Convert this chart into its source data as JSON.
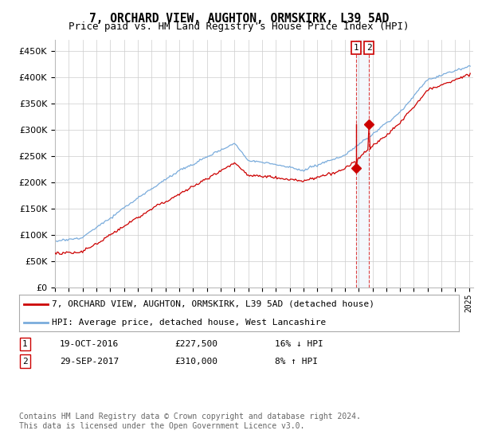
{
  "title": "7, ORCHARD VIEW, AUGHTON, ORMSKIRK, L39 5AD",
  "subtitle": "Price paid vs. HM Land Registry's House Price Index (HPI)",
  "x_start_year": 1995,
  "x_end_year": 2025,
  "y_min": 0,
  "y_max": 470000,
  "y_ticks": [
    0,
    50000,
    100000,
    150000,
    200000,
    250000,
    300000,
    350000,
    400000,
    450000
  ],
  "sale1_date": "19-OCT-2016",
  "sale1_price": 227500,
  "sale1_pct": "16%",
  "sale1_dir": "↓",
  "sale2_date": "29-SEP-2017",
  "sale2_price": 310000,
  "sale2_dir": "↑",
  "sale2_pct": "8%",
  "sale1_x": 2016.8,
  "sale2_x": 2017.75,
  "line1_label": "7, ORCHARD VIEW, AUGHTON, ORMSKIRK, L39 5AD (detached house)",
  "line2_label": "HPI: Average price, detached house, West Lancashire",
  "line1_color": "#cc0000",
  "line2_color": "#7aacdc",
  "footnote": "Contains HM Land Registry data © Crown copyright and database right 2024.\nThis data is licensed under the Open Government Licence v3.0.",
  "background_color": "#ffffff",
  "grid_color": "#cccccc"
}
